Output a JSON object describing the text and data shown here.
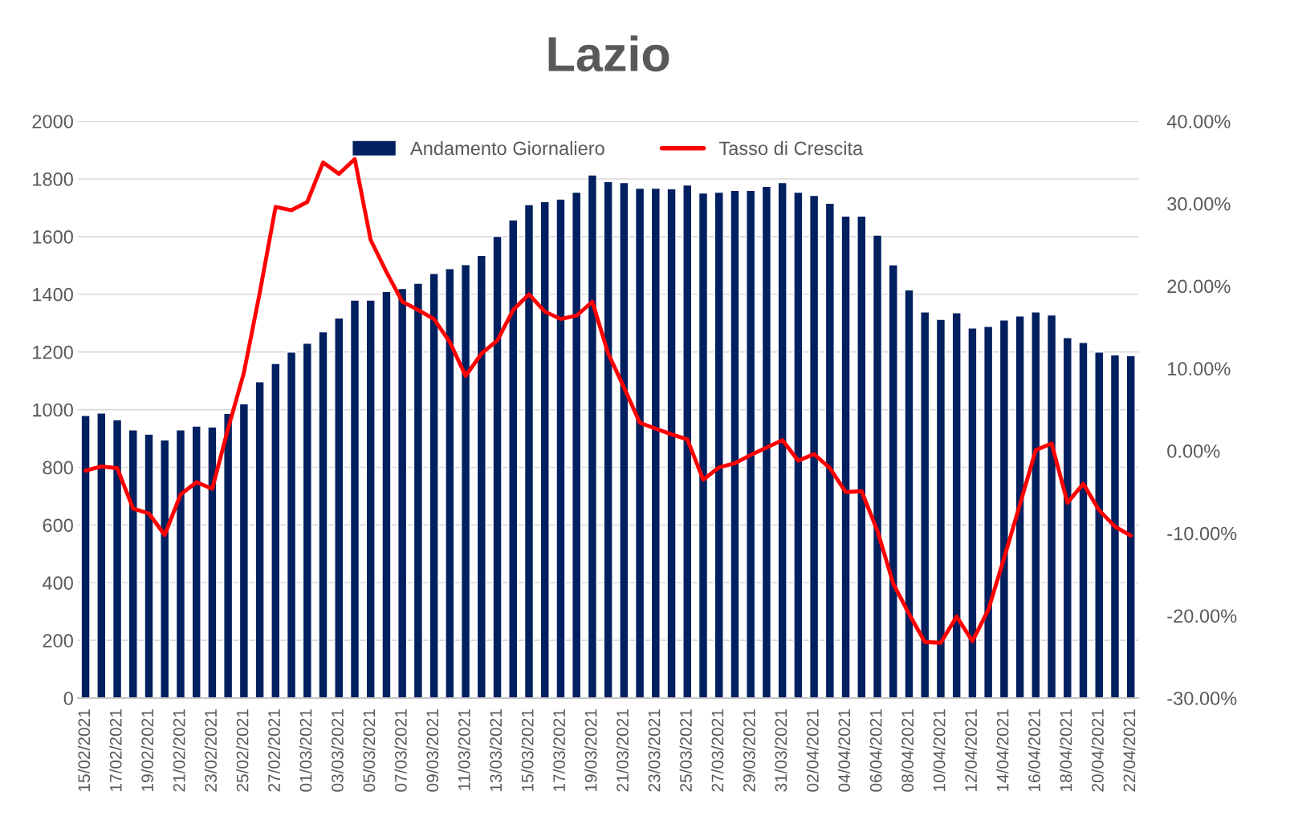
{
  "chart_data": {
    "type": "bar",
    "title": "Lazio",
    "categories": [
      "15/02/2021",
      null,
      "17/02/2021",
      null,
      "19/02/2021",
      null,
      "21/02/2021",
      null,
      "23/02/2021",
      null,
      "25/02/2021",
      null,
      "27/02/2021",
      null,
      "01/03/2021",
      null,
      "03/03/2021",
      null,
      "05/03/2021",
      null,
      "07/03/2021",
      null,
      "09/03/2021",
      null,
      "11/03/2021",
      null,
      "13/03/2021",
      null,
      "15/03/2021",
      null,
      "17/03/2021",
      null,
      "19/03/2021",
      null,
      "21/03/2021",
      null,
      "23/03/2021",
      null,
      "25/03/2021",
      null,
      "27/03/2021",
      null,
      "29/03/2021",
      null,
      "31/03/2021",
      null,
      "02/04/2021",
      null,
      "04/04/2021",
      null,
      "06/04/2021",
      null,
      "08/04/2021",
      null,
      "10/04/2021",
      null,
      "12/04/2021",
      null,
      "14/04/2021",
      null,
      "16/04/2021",
      null,
      "18/04/2021",
      null,
      "20/04/2021",
      null,
      "22/04/2021"
    ],
    "series": [
      {
        "name": "Andamento Giornaliero",
        "color": "#002060",
        "values": [
          980,
          988,
          965,
          930,
          915,
          895,
          930,
          943,
          940,
          987,
          1020,
          1097,
          1160,
          1200,
          1230,
          1270,
          1318,
          1380,
          1380,
          1410,
          1420,
          1438,
          1472,
          1489,
          1503,
          1535,
          1601,
          1658,
          1711,
          1721,
          1730,
          1754,
          1814,
          1791,
          1787,
          1768,
          1768,
          1766,
          1779,
          1751,
          1754,
          1760,
          1760,
          1774,
          1787,
          1754,
          1743,
          1716,
          1671,
          1671,
          1605,
          1502,
          1415,
          1339,
          1313,
          1336,
          1283,
          1289,
          1311,
          1325,
          1339,
          1328,
          1250,
          1233,
          1200,
          1190,
          1187
        ]
      },
      {
        "name": "Tasso di Crescita",
        "type": "line",
        "axis": "y2",
        "color": "#ff0000",
        "values": [
          -2.4,
          -1.9,
          -2.1,
          -7.0,
          -7.6,
          -10.2,
          -5.3,
          -3.8,
          -4.6,
          2.7,
          9.5,
          19.2,
          29.6,
          29.2,
          30.2,
          35.0,
          33.6,
          35.4,
          25.6,
          21.7,
          18.1,
          17.1,
          16.0,
          13.2,
          9.1,
          11.8,
          13.4,
          17.1,
          19.0,
          16.9,
          16.0,
          16.4,
          18.1,
          11.8,
          7.7,
          3.4,
          2.7,
          2.0,
          1.4,
          -3.5,
          -2.0,
          -1.5,
          -0.5,
          0.4,
          1.3,
          -1.2,
          -0.4,
          -2.1,
          -5.0,
          -4.9,
          -9.7,
          -16.1,
          -19.8,
          -23.2,
          -23.3,
          -20.1,
          -23.1,
          -19.3,
          -13.0,
          -6.5,
          0.1,
          0.9,
          -6.3,
          -4.0,
          -7.2,
          -9.2,
          -10.3
        ]
      }
    ],
    "ylim": [
      0,
      2000
    ],
    "yticks": [
      0,
      200,
      400,
      600,
      800,
      1000,
      1200,
      1400,
      1600,
      1800,
      2000
    ],
    "y2lim": [
      -30,
      40
    ],
    "y2ticks": [
      {
        "value": -30,
        "label": "-30.00%"
      },
      {
        "value": -20,
        "label": "-20.00%"
      },
      {
        "value": -10,
        "label": "-10.00%"
      },
      {
        "value": 0,
        "label": "0.00%"
      },
      {
        "value": 10,
        "label": "10.00%"
      },
      {
        "value": 20,
        "label": "20.00%"
      },
      {
        "value": 30,
        "label": "30.00%"
      },
      {
        "value": 40,
        "label": "40.00%"
      }
    ],
    "grid": "y",
    "legend": "top"
  }
}
